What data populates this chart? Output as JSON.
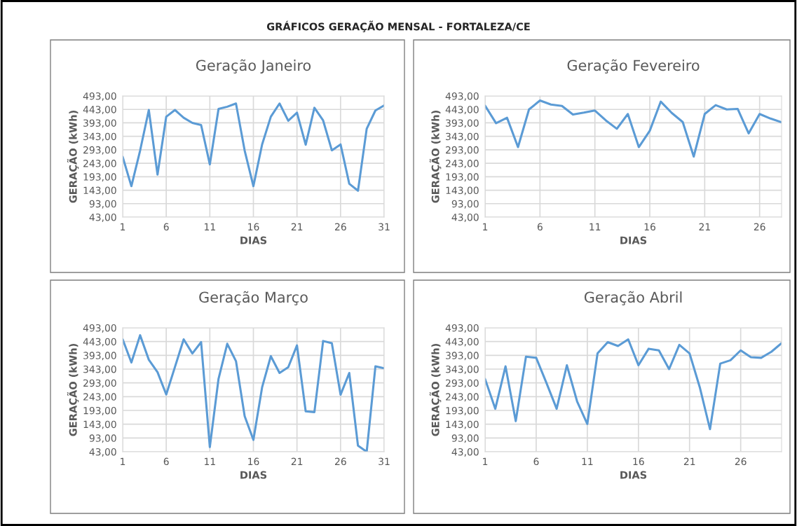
{
  "chart_data": [
    {
      "type": "line",
      "title": "Geração Janeiro",
      "xlabel": "DIAS",
      "ylabel": "GERAÇÃO (kWh)",
      "annotations": [
        "GRÁFICOS GERAÇÃO MENSAL - FORTALEZA/CE"
      ],
      "categories": [
        "1",
        null,
        null,
        null,
        null,
        "6",
        null,
        null,
        null,
        null,
        "11",
        null,
        null,
        null,
        null,
        "16",
        null,
        null,
        null,
        null,
        "21",
        null,
        null,
        null,
        null,
        "26",
        null,
        null,
        null,
        null,
        "31"
      ],
      "series": [
        {
          "color": "#5b9bd5",
          "values": [
            267,
            158,
            290,
            441,
            201,
            416,
            441,
            412,
            393,
            385,
            239,
            445,
            453,
            465,
            290,
            158,
            313,
            416,
            465,
            401,
            431,
            312,
            449,
            402,
            291,
            313,
            167,
            141,
            371,
            439,
            458
          ]
        }
      ],
      "ylim": [
        43,
        493
      ],
      "yticks": [
        {
          "value": 43,
          "label": "43,00"
        },
        {
          "value": 93,
          "label": "93,00"
        },
        {
          "value": 143,
          "label": "143,00"
        },
        {
          "value": 193,
          "label": "193,00"
        },
        {
          "value": 243,
          "label": "243,00"
        },
        {
          "value": 293,
          "label": "293,00"
        },
        {
          "value": 343,
          "label": "343,00"
        },
        {
          "value": 393,
          "label": "393,00"
        },
        {
          "value": 443,
          "label": "443,00"
        },
        {
          "value": 493,
          "label": "493,00"
        }
      ],
      "grid": true,
      "marker": "none",
      "line_style": "solid"
    },
    {
      "type": "line",
      "title": "Geração Fevereiro",
      "xlabel": "DIAS",
      "ylabel": "GERAÇÃO (kWh)",
      "categories": [
        "1",
        null,
        null,
        null,
        null,
        "6",
        null,
        null,
        null,
        null,
        "11",
        null,
        null,
        null,
        null,
        "16",
        null,
        null,
        null,
        null,
        "21",
        null,
        null,
        null,
        null,
        "26",
        null,
        null
      ],
      "series": [
        {
          "color": "#5b9bd5",
          "values": [
            457,
            392,
            412,
            303,
            443,
            476,
            461,
            456,
            424,
            431,
            439,
            402,
            371,
            426,
            303,
            364,
            472,
            430,
            396,
            268,
            426,
            459,
            443,
            445,
            354,
            426,
            409,
            395
          ]
        }
      ],
      "ylim": [
        43,
        493
      ],
      "yticks": [
        {
          "value": 43,
          "label": "43,00"
        },
        {
          "value": 93,
          "label": "93,00"
        },
        {
          "value": 143,
          "label": "143,00"
        },
        {
          "value": 193,
          "label": "193,00"
        },
        {
          "value": 243,
          "label": "243,00"
        },
        {
          "value": 293,
          "label": "293,00"
        },
        {
          "value": 343,
          "label": "343,00"
        },
        {
          "value": 393,
          "label": "393,00"
        },
        {
          "value": 443,
          "label": "443,00"
        },
        {
          "value": 493,
          "label": "493,00"
        }
      ],
      "grid": true,
      "marker": "none",
      "line_style": "solid"
    },
    {
      "type": "line",
      "title": "Geração Março",
      "xlabel": "DIAS",
      "ylabel": "GERAÇÃO (kWh)",
      "categories": [
        "1",
        null,
        null,
        null,
        null,
        "6",
        null,
        null,
        null,
        null,
        "11",
        null,
        null,
        null,
        null,
        "16",
        null,
        null,
        null,
        null,
        "21",
        null,
        null,
        null,
        null,
        "26",
        null,
        null,
        null,
        null,
        "31"
      ],
      "series": [
        {
          "color": "#5b9bd5",
          "values": [
            451,
            367,
            466,
            377,
            332,
            251,
            351,
            451,
            400,
            441,
            60,
            308,
            435,
            372,
            172,
            86,
            277,
            390,
            329,
            350,
            429,
            190,
            187,
            445,
            437,
            250,
            329,
            65,
            43,
            353,
            346
          ]
        }
      ],
      "ylim": [
        43,
        493
      ],
      "yticks": [
        {
          "value": 43,
          "label": "43,00"
        },
        {
          "value": 93,
          "label": "93,00"
        },
        {
          "value": 143,
          "label": "143,00"
        },
        {
          "value": 193,
          "label": "193,00"
        },
        {
          "value": 243,
          "label": "243,00"
        },
        {
          "value": 293,
          "label": "293,00"
        },
        {
          "value": 343,
          "label": "343,00"
        },
        {
          "value": 393,
          "label": "393,00"
        },
        {
          "value": 443,
          "label": "443,00"
        },
        {
          "value": 493,
          "label": "493,00"
        }
      ],
      "grid": true,
      "marker": "none",
      "line_style": "solid"
    },
    {
      "type": "line",
      "title": "Geração Abril",
      "xlabel": "DIAS",
      "ylabel": "GERAÇÃO (kWh)",
      "categories": [
        "1",
        null,
        null,
        null,
        null,
        "6",
        null,
        null,
        null,
        null,
        "11",
        null,
        null,
        null,
        null,
        "16",
        null,
        null,
        null,
        null,
        "21",
        null,
        null,
        null,
        null,
        "26",
        null,
        null,
        null,
        null
      ],
      "series": [
        {
          "color": "#5b9bd5",
          "values": [
            307,
            199,
            353,
            154,
            388,
            384,
            293,
            199,
            357,
            226,
            144,
            400,
            441,
            427,
            451,
            357,
            417,
            411,
            343,
            431,
            400,
            277,
            125,
            363,
            375,
            411,
            386,
            384,
            406,
            437
          ]
        }
      ],
      "ylim": [
        43,
        493
      ],
      "yticks": [
        {
          "value": 43,
          "label": "43,00"
        },
        {
          "value": 93,
          "label": "93,00"
        },
        {
          "value": 143,
          "label": "143,00"
        },
        {
          "value": 193,
          "label": "193,00"
        },
        {
          "value": 243,
          "label": "243,00"
        },
        {
          "value": 293,
          "label": "293,00"
        },
        {
          "value": 343,
          "label": "343,00"
        },
        {
          "value": 393,
          "label": "393,00"
        },
        {
          "value": 443,
          "label": "443,00"
        },
        {
          "value": 493,
          "label": "493,00"
        }
      ],
      "grid": true,
      "marker": "none",
      "line_style": "solid"
    }
  ]
}
